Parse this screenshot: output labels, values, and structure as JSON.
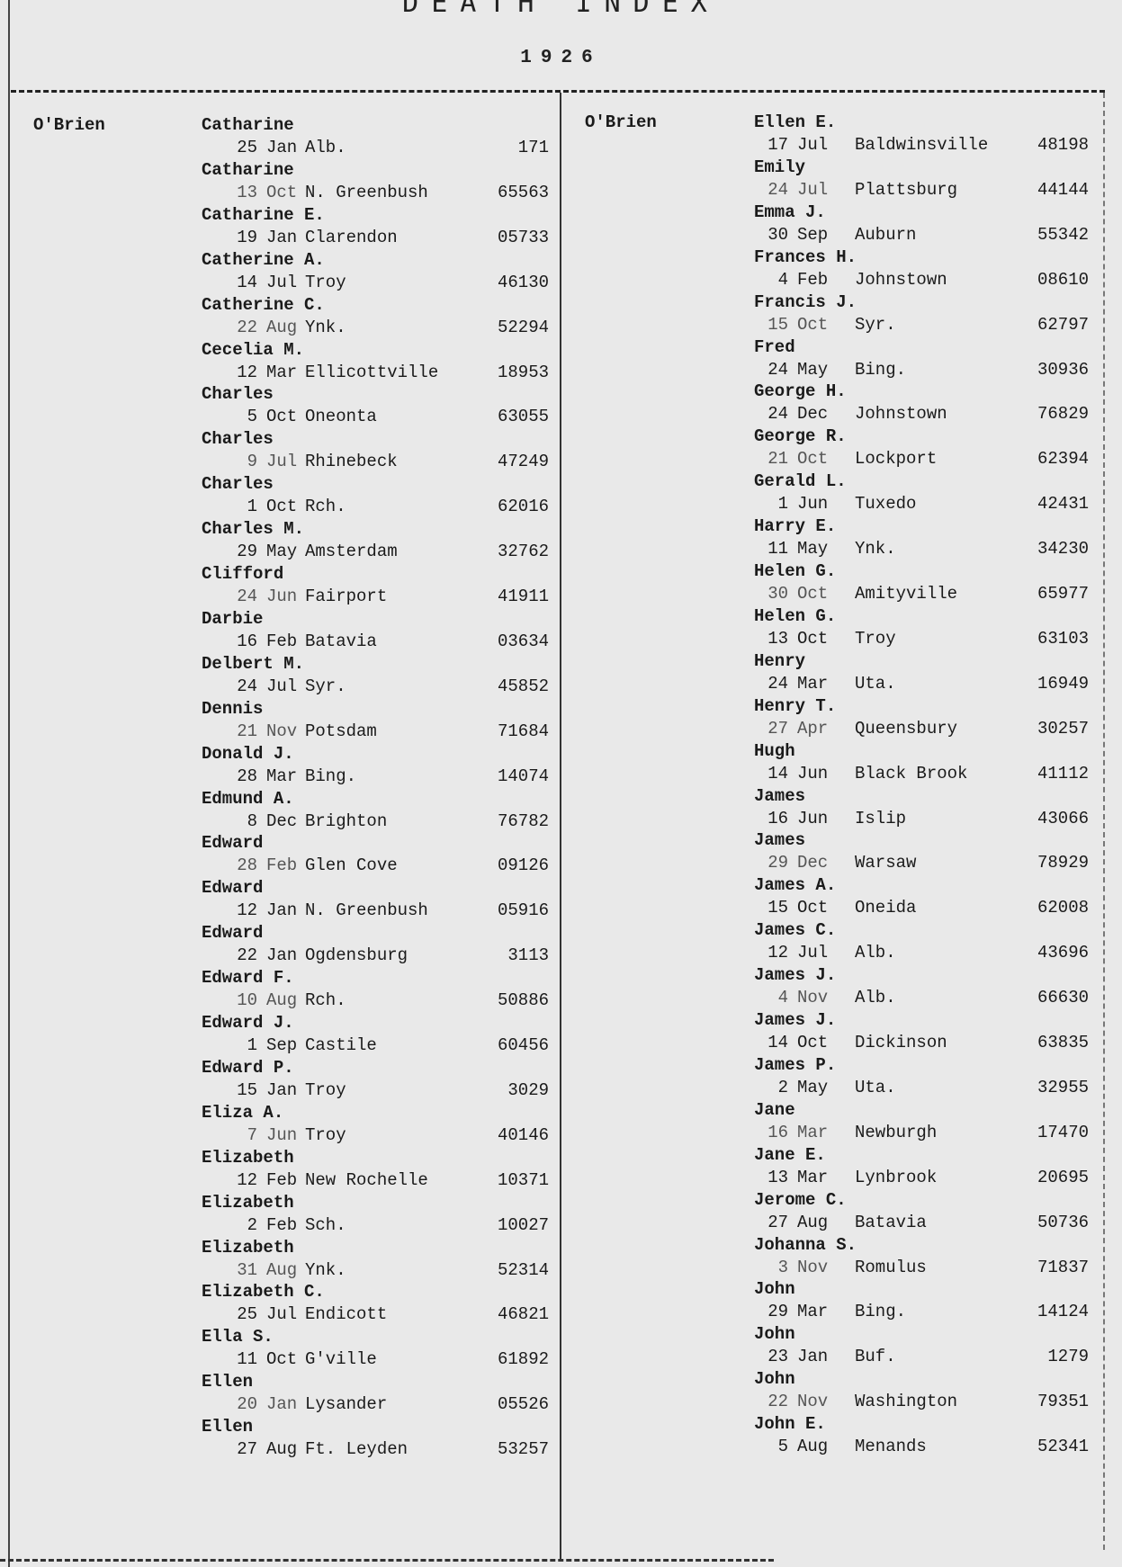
{
  "header": {
    "title": "DEATH INDEX",
    "year": "1926"
  },
  "left_column": {
    "surname": "O'Brien",
    "entries": [
      {
        "given": "Catharine",
        "day": "25",
        "month": "Jan",
        "place": "Alb.",
        "number": "171"
      },
      {
        "given": "Catharine",
        "day": "13",
        "month": "Oct",
        "place": "N. Greenbush",
        "number": "65563"
      },
      {
        "given": "Catharine E.",
        "day": "19",
        "month": "Jan",
        "place": "Clarendon",
        "number": "05733"
      },
      {
        "given": "Catherine A.",
        "day": "14",
        "month": "Jul",
        "place": "Troy",
        "number": "46130"
      },
      {
        "given": "Catherine C.",
        "day": "22",
        "month": "Aug",
        "place": "Ynk.",
        "number": "52294"
      },
      {
        "given": "Cecelia M.",
        "day": "12",
        "month": "Mar",
        "place": "Ellicottville",
        "number": "18953"
      },
      {
        "given": "Charles",
        "day": "5",
        "month": "Oct",
        "place": "Oneonta",
        "number": "63055"
      },
      {
        "given": "Charles",
        "day": "9",
        "month": "Jul",
        "place": "Rhinebeck",
        "number": "47249"
      },
      {
        "given": "Charles",
        "day": "1",
        "month": "Oct",
        "place": "Rch.",
        "number": "62016"
      },
      {
        "given": "Charles M.",
        "day": "29",
        "month": "May",
        "place": "Amsterdam",
        "number": "32762"
      },
      {
        "given": "Clifford",
        "day": "24",
        "month": "Jun",
        "place": "Fairport",
        "number": "41911"
      },
      {
        "given": "Darbie",
        "day": "16",
        "month": "Feb",
        "place": "Batavia",
        "number": "03634"
      },
      {
        "given": "Delbert M.",
        "day": "24",
        "month": "Jul",
        "place": "Syr.",
        "number": "45852"
      },
      {
        "given": "Dennis",
        "day": "21",
        "month": "Nov",
        "place": "Potsdam",
        "number": "71684"
      },
      {
        "given": "Donald J.",
        "day": "28",
        "month": "Mar",
        "place": "Bing.",
        "number": "14074"
      },
      {
        "given": "Edmund A.",
        "day": "8",
        "month": "Dec",
        "place": "Brighton",
        "number": "76782"
      },
      {
        "given": "Edward",
        "day": "28",
        "month": "Feb",
        "place": "Glen Cove",
        "number": "09126"
      },
      {
        "given": "Edward",
        "day": "12",
        "month": "Jan",
        "place": "N. Greenbush",
        "number": "05916"
      },
      {
        "given": "Edward",
        "day": "22",
        "month": "Jan",
        "place": "Ogdensburg",
        "number": "3113"
      },
      {
        "given": "Edward F.",
        "day": "10",
        "month": "Aug",
        "place": "Rch.",
        "number": "50886"
      },
      {
        "given": "Edward J.",
        "day": "1",
        "month": "Sep",
        "place": "Castile",
        "number": "60456"
      },
      {
        "given": "Edward P.",
        "day": "15",
        "month": "Jan",
        "place": "Troy",
        "number": "3029"
      },
      {
        "given": "Eliza A.",
        "day": "7",
        "month": "Jun",
        "place": "Troy",
        "number": "40146"
      },
      {
        "given": "Elizabeth",
        "day": "12",
        "month": "Feb",
        "place": "New Rochelle",
        "number": "10371"
      },
      {
        "given": "Elizabeth",
        "day": "2",
        "month": "Feb",
        "place": "Sch.",
        "number": "10027"
      },
      {
        "given": "Elizabeth",
        "day": "31",
        "month": "Aug",
        "place": "Ynk.",
        "number": "52314"
      },
      {
        "given": "Elizabeth C.",
        "day": "25",
        "month": "Jul",
        "place": "Endicott",
        "number": "46821"
      },
      {
        "given": "Ella S.",
        "day": "11",
        "month": "Oct",
        "place": "G'ville",
        "number": "61892"
      },
      {
        "given": "Ellen",
        "day": "20",
        "month": "Jan",
        "place": "Lysander",
        "number": "05526"
      },
      {
        "given": "Ellen",
        "day": "27",
        "month": "Aug",
        "place": "Ft. Leyden",
        "number": "53257"
      }
    ]
  },
  "right_column": {
    "surname": "O'Brien",
    "entries": [
      {
        "given": "Ellen E.",
        "day": "17",
        "month": "Jul",
        "place": "Baldwinsville",
        "number": "48198"
      },
      {
        "given": "Emily",
        "day": "24",
        "month": "Jul",
        "place": "Plattsburg",
        "number": "44144"
      },
      {
        "given": "Emma J.",
        "day": "30",
        "month": "Sep",
        "place": "Auburn",
        "number": "55342"
      },
      {
        "given": "Frances H.",
        "day": "4",
        "month": "Feb",
        "place": "Johnstown",
        "number": "08610"
      },
      {
        "given": "Francis J.",
        "day": "15",
        "month": "Oct",
        "place": "Syr.",
        "number": "62797"
      },
      {
        "given": "Fred",
        "day": "24",
        "month": "May",
        "place": "Bing.",
        "number": "30936"
      },
      {
        "given": "George H.",
        "day": "24",
        "month": "Dec",
        "place": "Johnstown",
        "number": "76829"
      },
      {
        "given": "George R.",
        "day": "21",
        "month": "Oct",
        "place": "Lockport",
        "number": "62394"
      },
      {
        "given": "Gerald L.",
        "day": "1",
        "month": "Jun",
        "place": "Tuxedo",
        "number": "42431"
      },
      {
        "given": "Harry E.",
        "day": "11",
        "month": "May",
        "place": "Ynk.",
        "number": "34230"
      },
      {
        "given": "Helen G.",
        "day": "30",
        "month": "Oct",
        "place": "Amityville",
        "number": "65977"
      },
      {
        "given": "Helen G.",
        "day": "13",
        "month": "Oct",
        "place": "Troy",
        "number": "63103"
      },
      {
        "given": "Henry",
        "day": "24",
        "month": "Mar",
        "place": "Uta.",
        "number": "16949"
      },
      {
        "given": "Henry T.",
        "day": "27",
        "month": "Apr",
        "place": "Queensbury",
        "number": "30257"
      },
      {
        "given": "Hugh",
        "day": "14",
        "month": "Jun",
        "place": "Black Brook",
        "number": "41112"
      },
      {
        "given": "James",
        "day": "16",
        "month": "Jun",
        "place": "Islip",
        "number": "43066"
      },
      {
        "given": "James",
        "day": "29",
        "month": "Dec",
        "place": "Warsaw",
        "number": "78929"
      },
      {
        "given": "James A.",
        "day": "15",
        "month": "Oct",
        "place": "Oneida",
        "number": "62008"
      },
      {
        "given": "James C.",
        "day": "12",
        "month": "Jul",
        "place": "Alb.",
        "number": "43696"
      },
      {
        "given": "James J.",
        "day": "4",
        "month": "Nov",
        "place": "Alb.",
        "number": "66630"
      },
      {
        "given": "James J.",
        "day": "14",
        "month": "Oct",
        "place": "Dickinson",
        "number": "63835"
      },
      {
        "given": "James P.",
        "day": "2",
        "month": "May",
        "place": "Uta.",
        "number": "32955"
      },
      {
        "given": "Jane",
        "day": "16",
        "month": "Mar",
        "place": "Newburgh",
        "number": "17470"
      },
      {
        "given": "Jane E.",
        "day": "13",
        "month": "Mar",
        "place": "Lynbrook",
        "number": "20695"
      },
      {
        "given": "Jerome C.",
        "day": "27",
        "month": "Aug",
        "place": "Batavia",
        "number": "50736"
      },
      {
        "given": "Johanna S.",
        "day": "3",
        "month": "Nov",
        "place": "Romulus",
        "number": "71837"
      },
      {
        "given": "John",
        "day": "29",
        "month": "Mar",
        "place": "Bing.",
        "number": "14124"
      },
      {
        "given": "John",
        "day": "23",
        "month": "Jan",
        "place": "Buf.",
        "number": "1279"
      },
      {
        "given": "John",
        "day": "22",
        "month": "Nov",
        "place": "Washington",
        "number": "79351"
      },
      {
        "given": "John E.",
        "day": "5",
        "month": "Aug",
        "place": "Menands",
        "number": "52341"
      }
    ]
  }
}
